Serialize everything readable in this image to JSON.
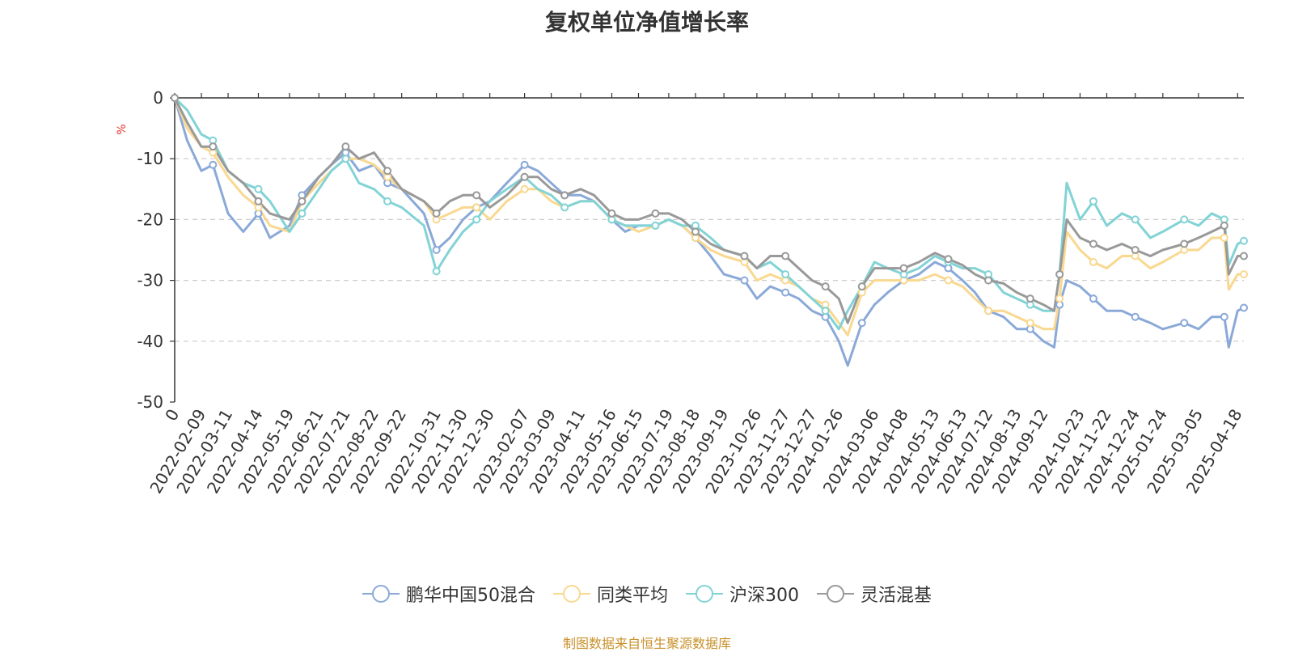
{
  "chart_data": {
    "type": "line",
    "title": "复权单位净值增长率",
    "ylabel": "%",
    "ylim": [
      -50,
      0
    ],
    "yticks": [
      0,
      -10,
      -20,
      -30,
      -40,
      -50
    ],
    "xlim": [
      "2022-01-10",
      "2025-04-25"
    ],
    "xticks": [
      "0",
      "2022-02-09",
      "2022-03-11",
      "2022-04-14",
      "2022-05-19",
      "2022-06-21",
      "2022-07-21",
      "2022-08-22",
      "2022-09-22",
      "2022-10-31",
      "2022-11-30",
      "2022-12-30",
      "2023-02-07",
      "2023-03-09",
      "2023-04-11",
      "2023-05-16",
      "2023-06-15",
      "2023-07-19",
      "2023-08-18",
      "2023-09-19",
      "2023-10-26",
      "2023-11-27",
      "2023-12-27",
      "2024-01-26",
      "2024-03-06",
      "2024-04-08",
      "2024-05-13",
      "2024-06-13",
      "2024-07-12",
      "2024-08-13",
      "2024-09-12",
      "2024-10-23",
      "2024-11-22",
      "2024-12-24",
      "2025-01-24",
      "2025-03-05",
      "2025-04-18"
    ],
    "grid": true,
    "legend_position": "bottom",
    "x": [
      "2022-01-10",
      "2022-01-24",
      "2022-02-09",
      "2022-02-22",
      "2022-03-11",
      "2022-03-28",
      "2022-04-14",
      "2022-04-27",
      "2022-05-19",
      "2022-06-02",
      "2022-06-21",
      "2022-07-05",
      "2022-07-21",
      "2022-08-05",
      "2022-08-22",
      "2022-09-06",
      "2022-09-22",
      "2022-10-17",
      "2022-10-31",
      "2022-11-15",
      "2022-11-30",
      "2022-12-15",
      "2022-12-30",
      "2023-01-18",
      "2023-02-07",
      "2023-02-22",
      "2023-03-09",
      "2023-03-24",
      "2023-04-11",
      "2023-04-26",
      "2023-05-16",
      "2023-05-31",
      "2023-06-15",
      "2023-07-04",
      "2023-07-19",
      "2023-08-03",
      "2023-08-18",
      "2023-09-04",
      "2023-09-19",
      "2023-10-12",
      "2023-10-26",
      "2023-11-10",
      "2023-11-27",
      "2023-12-12",
      "2023-12-27",
      "2024-01-11",
      "2024-01-26",
      "2024-02-05",
      "2024-02-21",
      "2024-03-06",
      "2024-03-21",
      "2024-04-08",
      "2024-04-25",
      "2024-05-13",
      "2024-05-28",
      "2024-06-13",
      "2024-06-27",
      "2024-07-12",
      "2024-07-29",
      "2024-08-13",
      "2024-08-28",
      "2024-09-12",
      "2024-09-24",
      "2024-09-30",
      "2024-10-08",
      "2024-10-23",
      "2024-11-07",
      "2024-11-22",
      "2024-12-09",
      "2024-12-24",
      "2025-01-10",
      "2025-01-24",
      "2025-02-17",
      "2025-03-05",
      "2025-03-20",
      "2025-04-03",
      "2025-04-08",
      "2025-04-18",
      "2025-04-25"
    ],
    "series": [
      {
        "name": "鹏华中国50混合",
        "color": "#8aa9d8",
        "values": [
          0,
          -7,
          -12,
          -11,
          -19,
          -22,
          -19,
          -23,
          -21,
          -16,
          -13,
          -11,
          -9,
          -12,
          -11,
          -14,
          -15,
          -19,
          -25,
          -23,
          -20,
          -18,
          -17,
          -14,
          -11,
          -12,
          -14,
          -16,
          -16,
          -17,
          -20,
          -22,
          -21,
          -21,
          -20,
          -21,
          -23,
          -26,
          -29,
          -30,
          -33,
          -31,
          -32,
          -33,
          -35,
          -36,
          -40,
          -44,
          -37,
          -34,
          -32,
          -30,
          -29,
          -27,
          -28,
          -30,
          -32,
          -35,
          -36,
          -38,
          -38,
          -40,
          -41,
          -34,
          -30,
          -31,
          -33,
          -35,
          -35,
          -36,
          -37,
          -38,
          -37,
          -38,
          -36,
          -36,
          -41,
          -35,
          -34.5
        ]
      },
      {
        "name": "同类平均",
        "color": "#f9d890",
        "values": [
          0,
          -5,
          -8,
          -9,
          -13,
          -16,
          -18,
          -21,
          -22,
          -17,
          -14,
          -12,
          -10,
          -10,
          -11,
          -13,
          -15,
          -17,
          -20,
          -19,
          -18,
          -18,
          -20,
          -17,
          -15,
          -15,
          -17,
          -18,
          -17,
          -17,
          -20,
          -21,
          -22,
          -21,
          -20,
          -21,
          -23,
          -25,
          -26,
          -27,
          -30,
          -29,
          -30,
          -31,
          -33,
          -34,
          -37,
          -39,
          -32,
          -30,
          -30,
          -30,
          -30,
          -29,
          -30,
          -31,
          -33,
          -35,
          -35,
          -36,
          -37,
          -38,
          -38,
          -33,
          -22,
          -25,
          -27,
          -28,
          -26,
          -26,
          -28,
          -27,
          -25,
          -25,
          -23,
          -23,
          -31.5,
          -29,
          -29
        ]
      },
      {
        "name": "沪深300",
        "color": "#82d3d6",
        "values": [
          0,
          -2,
          -6,
          -7,
          -12,
          -14,
          -15,
          -17,
          -22,
          -19,
          -15,
          -12,
          -10,
          -14,
          -15,
          -17,
          -18,
          -21,
          -28.5,
          -25,
          -22,
          -20,
          -17,
          -15,
          -13,
          -15,
          -16,
          -18,
          -17,
          -17,
          -20,
          -21,
          -21,
          -21,
          -20,
          -21,
          -21,
          -23,
          -25,
          -26,
          -28,
          -27,
          -29,
          -31,
          -33,
          -35,
          -38,
          -35,
          -31,
          -27,
          -28,
          -29,
          -28,
          -26,
          -27,
          -28,
          -28,
          -29,
          -32,
          -33,
          -34,
          -35,
          -35,
          -29,
          -14,
          -20,
          -17,
          -21,
          -19,
          -20,
          -23,
          -22,
          -20,
          -21,
          -19,
          -20,
          -27.5,
          -24,
          -23.5
        ]
      },
      {
        "name": "灵活混基",
        "color": "#999999",
        "values": [
          0,
          -4,
          -8,
          -8,
          -12,
          -14,
          -17,
          -19,
          -20,
          -17,
          -13,
          -11,
          -8,
          -10,
          -9,
          -12,
          -15,
          -17,
          -19,
          -17,
          -16,
          -16,
          -18,
          -16,
          -13,
          -13,
          -15,
          -16,
          -15,
          -16,
          -19,
          -20,
          -20,
          -19,
          -19,
          -20,
          -22,
          -24,
          -25,
          -26,
          -28,
          -26,
          -26,
          -28,
          -30,
          -31,
          -33,
          -37,
          -31,
          -28,
          -28,
          -28,
          -27,
          -25.5,
          -26.5,
          -27.5,
          -29,
          -30,
          -30.5,
          -32,
          -33,
          -34,
          -35,
          -29,
          -20,
          -23,
          -24,
          -25,
          -24,
          -25,
          -26,
          -25,
          -24,
          -23,
          -22,
          -21,
          -29,
          -26,
          -26
        ]
      }
    ]
  },
  "source_note": "制图数据来自恒生聚源数据库"
}
